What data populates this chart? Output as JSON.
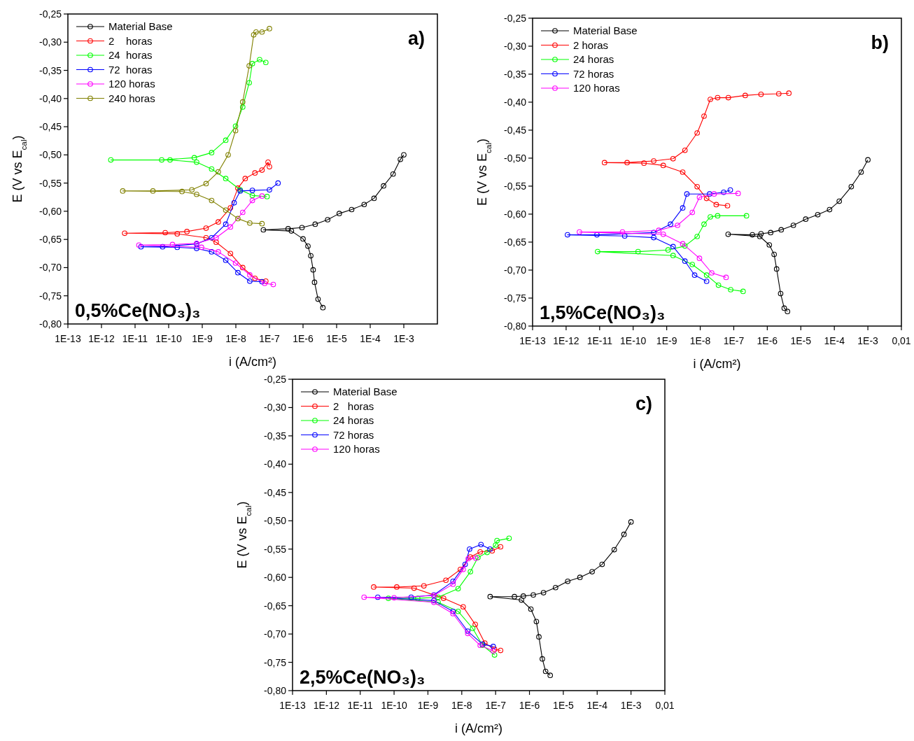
{
  "chart_data": [
    {
      "type": "line",
      "xlabel": "i (A/cm²)",
      "ylabel": "E (V vs E$_{cal}$)",
      "log": "x",
      "legend": "top left",
      "marker": "circle",
      "line_style": "solid",
      "xlim": [
        1e-13,
        0.01
      ],
      "ylim": [
        -0.8,
        -0.25
      ],
      "xticks": [
        {
          "value": 1e-13,
          "label": "1E-13"
        },
        {
          "value": 1e-12,
          "label": "1E-12"
        },
        {
          "value": 1e-11,
          "label": "1E-11"
        },
        {
          "value": 1e-10,
          "label": "1E-10"
        },
        {
          "value": 1e-09,
          "label": "1E-9"
        },
        {
          "value": 1e-08,
          "label": "1E-8"
        },
        {
          "value": 1e-07,
          "label": "1E-7"
        },
        {
          "value": 1e-06,
          "label": "1E-6"
        },
        {
          "value": 1e-05,
          "label": "1E-5"
        },
        {
          "value": 0.0001,
          "label": "1E-4"
        },
        {
          "value": 0.001,
          "label": "1E-3"
        }
      ],
      "yticks": [
        {
          "value": -0.25,
          "label": "-0,25"
        },
        {
          "value": -0.3,
          "label": "-0,30"
        },
        {
          "value": -0.35,
          "label": "-0,35"
        },
        {
          "value": -0.4,
          "label": "-0,40"
        },
        {
          "value": -0.45,
          "label": "-0,45"
        },
        {
          "value": -0.5,
          "label": "-0,50"
        },
        {
          "value": -0.55,
          "label": "-0,55"
        },
        {
          "value": -0.6,
          "label": "-0,60"
        },
        {
          "value": -0.65,
          "label": "-0,65"
        },
        {
          "value": -0.7,
          "label": "-0,70"
        },
        {
          "value": -0.75,
          "label": "-0,75"
        },
        {
          "value": -0.8,
          "label": "-0,80"
        }
      ],
      "annotations": [
        "a)",
        "0,5%Ce(NO₃)₃"
      ],
      "series": [
        {
          "name": "Material Base",
          "color": "#000000",
          "x": [
            3.9e-06,
            2.8e-06,
            2.2e-06,
            2e-06,
            1.7e-06,
            1.4e-06,
            1e-06,
            4.5e-07,
            6.6e-08,
            3.6e-07,
            9.3e-07,
            2.3e-06,
            5.4e-06,
            1.2e-05,
            2.8e-05,
            6.6e-05,
            0.00013,
            0.00025,
            0.00048,
            0.00079,
            0.001
          ],
          "values": [
            -0.771,
            -0.756,
            -0.726,
            -0.704,
            -0.679,
            -0.662,
            -0.649,
            -0.635,
            -0.633,
            -0.631,
            -0.629,
            -0.623,
            -0.615,
            -0.604,
            -0.597,
            -0.588,
            -0.577,
            -0.555,
            -0.534,
            -0.508,
            -0.5
          ]
        },
        {
          "name": "2    horas",
          "color": "#ff0000",
          "x": [
            7.8e-08,
            3.7e-08,
            1.6e-08,
            6.9e-09,
            2.6e-09,
            1.3e-09,
            1.8e-10,
            4.9e-12,
            7.9e-11,
            3.5e-10,
            1.3e-09,
            3e-09,
            6.9e-09,
            1.15e-08,
            1.9e-08,
            3.7e-08,
            6e-08,
            9.1e-08,
            1e-07
          ],
          "values": [
            -0.724,
            -0.719,
            -0.7,
            -0.675,
            -0.655,
            -0.647,
            -0.64,
            -0.639,
            -0.638,
            -0.636,
            -0.63,
            -0.619,
            -0.594,
            -0.559,
            -0.542,
            -0.532,
            -0.527,
            -0.513,
            -0.521
          ]
        },
        {
          "name": "24  horas",
          "color": "#00ff00",
          "x": [
            8.5e-08,
            3.1e-08,
            1.35e-08,
            5e-09,
            1.9e-09,
            6.8e-10,
            1.1e-10,
            1.9e-12,
            6.2e-11,
            5.8e-10,
            1.9e-09,
            5e-09,
            9.8e-09,
            1.6e-08,
            2.5e-08,
            3.1e-08,
            5.1e-08,
            7.8e-08
          ],
          "values": [
            -0.574,
            -0.572,
            -0.562,
            -0.542,
            -0.525,
            -0.513,
            -0.509,
            -0.509,
            -0.509,
            -0.505,
            -0.496,
            -0.474,
            -0.449,
            -0.415,
            -0.372,
            -0.338,
            -0.331,
            -0.336
          ]
        },
        {
          "name": "72  horas",
          "color": "#0000ff",
          "x": [
            6e-08,
            2.6e-08,
            1.15e-08,
            5e-09,
            1.9e-09,
            6.8e-10,
            1.8e-10,
            1.5e-11,
            6.6e-11,
            6.8e-10,
            1.9e-09,
            5e-09,
            8.9e-09,
            1.35e-08,
            3.1e-08,
            1e-07,
            1.8e-07
          ],
          "values": [
            -0.725,
            -0.724,
            -0.709,
            -0.687,
            -0.672,
            -0.666,
            -0.664,
            -0.663,
            -0.663,
            -0.658,
            -0.647,
            -0.623,
            -0.585,
            -0.564,
            -0.563,
            -0.562,
            -0.55
          ]
        },
        {
          "name": "120 horas",
          "color": "#ff00ff",
          "x": [
            1.3e-07,
            7.2e-08,
            2.6e-08,
            9.8e-09,
            3e-09,
            9.5e-10,
            1.3e-11,
            1.3e-10,
            6.8e-10,
            2.6e-09,
            6.9e-09,
            1.6e-08,
            3.1e-08,
            6e-08
          ],
          "values": [
            -0.73,
            -0.728,
            -0.713,
            -0.692,
            -0.672,
            -0.664,
            -0.66,
            -0.659,
            -0.657,
            -0.647,
            -0.628,
            -0.602,
            -0.581,
            -0.573
          ]
        },
        {
          "name": "240 horas",
          "color": "#808000",
          "x": [
            6e-08,
            2.6e-08,
            1.15e-08,
            5e-09,
            1.9e-09,
            6.8e-10,
            2.5e-10,
            4.3e-12,
            3.4e-11,
            4.9e-10,
            1.3e-09,
            3e-09,
            5.9e-09,
            9.8e-09,
            1.6e-08,
            2.5e-08,
            3.4e-08,
            4e-08,
            6e-08,
            1e-07
          ],
          "values": [
            -0.622,
            -0.621,
            -0.613,
            -0.598,
            -0.581,
            -0.57,
            -0.565,
            -0.564,
            -0.564,
            -0.562,
            -0.551,
            -0.53,
            -0.5,
            -0.457,
            -0.406,
            -0.342,
            -0.287,
            -0.282,
            -0.282,
            -0.276
          ]
        }
      ]
    },
    {
      "type": "line",
      "xlabel": "i (A/cm²)",
      "ylabel": "E (V vs E$_{cal}$)",
      "log": "x",
      "legend": "top left",
      "marker": "circle",
      "line_style": "solid",
      "xlim": [
        1e-13,
        0.01
      ],
      "ylim": [
        -0.8,
        -0.25
      ],
      "xticks": [
        {
          "value": 1e-13,
          "label": "1E-13"
        },
        {
          "value": 1e-12,
          "label": "1E-12"
        },
        {
          "value": 1e-11,
          "label": "1E-11"
        },
        {
          "value": 1e-10,
          "label": "1E-10"
        },
        {
          "value": 1e-09,
          "label": "1E-9"
        },
        {
          "value": 1e-08,
          "label": "1E-8"
        },
        {
          "value": 1e-07,
          "label": "1E-7"
        },
        {
          "value": 1e-06,
          "label": "1E-6"
        },
        {
          "value": 1e-05,
          "label": "1E-5"
        },
        {
          "value": 0.0001,
          "label": "1E-4"
        },
        {
          "value": 0.001,
          "label": "1E-3"
        },
        {
          "value": 0.01,
          "label": "0,01"
        }
      ],
      "yticks": [
        {
          "value": -0.25,
          "label": "-0,25"
        },
        {
          "value": -0.3,
          "label": "-0,30"
        },
        {
          "value": -0.35,
          "label": "-0,35"
        },
        {
          "value": -0.4,
          "label": "-0,40"
        },
        {
          "value": -0.45,
          "label": "-0,45"
        },
        {
          "value": -0.5,
          "label": "-0,50"
        },
        {
          "value": -0.55,
          "label": "-0,55"
        },
        {
          "value": -0.6,
          "label": "-0,60"
        },
        {
          "value": -0.65,
          "label": "-0,65"
        },
        {
          "value": -0.7,
          "label": "-0,70"
        },
        {
          "value": -0.75,
          "label": "-0,75"
        },
        {
          "value": -0.8,
          "label": "-0,80"
        }
      ],
      "annotations": [
        "b)",
        "1,5%Ce(NO₃)₃"
      ],
      "series": [
        {
          "name": "Material Base",
          "color": "#000000",
          "x": [
            4e-06,
            3.2e-06,
            2.5e-06,
            1.9e-06,
            1.6e-06,
            1.15e-06,
            6e-07,
            6.8e-08,
            3.6e-07,
            6.5e-07,
            1.26e-06,
            2.6e-06,
            6e-06,
            1.4e-05,
            3.2e-05,
            7.2e-05,
            0.00014,
            0.00032,
            0.00063,
            0.001
          ],
          "values": [
            -0.774,
            -0.768,
            -0.742,
            -0.698,
            -0.672,
            -0.655,
            -0.64,
            -0.636,
            -0.637,
            -0.635,
            -0.633,
            -0.628,
            -0.62,
            -0.609,
            -0.601,
            -0.592,
            -0.577,
            -0.551,
            -0.525,
            -0.503
          ]
        },
        {
          "name": "2 horas",
          "color": "#ff0000",
          "x": [
            6.5e-08,
            3e-08,
            1.55e-08,
            8.1e-09,
            3e-09,
            7.9e-10,
            2.1e-10,
            1.4e-11,
            6.6e-11,
            4.1e-10,
            1.55e-09,
            3.5e-09,
            8.1e-09,
            1.3e-08,
            2e-08,
            3.3e-08,
            6.9e-08,
            2.2e-07,
            6.5e-07,
            2.2e-06,
            4.4e-06
          ],
          "values": [
            -0.585,
            -0.583,
            -0.572,
            -0.551,
            -0.525,
            -0.513,
            -0.509,
            -0.508,
            -0.508,
            -0.505,
            -0.501,
            -0.486,
            -0.455,
            -0.425,
            -0.395,
            -0.392,
            -0.392,
            -0.388,
            -0.386,
            -0.385,
            -0.384
          ]
        },
        {
          "name": "24 horas",
          "color": "#00ff00",
          "x": [
            1.9e-07,
            8.1e-08,
            3.5e-08,
            1.55e-08,
            5.8e-09,
            1.55e-09,
            8.7e-12,
            1.4e-10,
            1.1e-09,
            3.5e-09,
            8.1e-09,
            1.3e-08,
            2e-08,
            3.3e-08,
            2.4e-07
          ],
          "values": [
            -0.738,
            -0.735,
            -0.727,
            -0.709,
            -0.69,
            -0.674,
            -0.667,
            -0.667,
            -0.664,
            -0.657,
            -0.64,
            -0.618,
            -0.605,
            -0.603,
            -0.603
          ]
        },
        {
          "name": "72 horas",
          "color": "#0000ff",
          "x": [
            1.55e-08,
            6.8e-09,
            3.5e-09,
            1.55e-09,
            4.1e-10,
            5.6e-11,
            1.1e-12,
            8.3e-12,
            4.1e-10,
            1.3e-09,
            3e-09,
            4e-09,
            1.9e-08,
            5e-08,
            7.9e-08
          ],
          "values": [
            -0.72,
            -0.709,
            -0.684,
            -0.658,
            -0.642,
            -0.639,
            -0.637,
            -0.637,
            -0.633,
            -0.618,
            -0.589,
            -0.564,
            -0.564,
            -0.561,
            -0.557
          ]
        },
        {
          "name": "120 horas",
          "color": "#ff00ff",
          "x": [
            5.9e-08,
            2.2e-08,
            9.5e-09,
            3e-09,
            7.9e-10,
            2.5e-12,
            4.8e-11,
            5.8e-10,
            2.1e-09,
            5.8e-09,
            9.5e-09,
            2.6e-08,
            1.35e-07
          ],
          "values": [
            -0.713,
            -0.705,
            -0.679,
            -0.653,
            -0.636,
            -0.632,
            -0.632,
            -0.629,
            -0.62,
            -0.597,
            -0.57,
            -0.564,
            -0.563
          ]
        }
      ]
    },
    {
      "type": "line",
      "xlabel": "i (A/cm²)",
      "ylabel": "E (V vs E$_{cal}$)",
      "log": "x",
      "legend": "top left",
      "marker": "circle",
      "line_style": "solid",
      "xlim": [
        1e-13,
        0.01
      ],
      "ylim": [
        -0.8,
        -0.25
      ],
      "xticks": [
        {
          "value": 1e-13,
          "label": "1E-13"
        },
        {
          "value": 1e-12,
          "label": "1E-12"
        },
        {
          "value": 1e-11,
          "label": "1E-11"
        },
        {
          "value": 1e-10,
          "label": "1E-10"
        },
        {
          "value": 1e-09,
          "label": "1E-9"
        },
        {
          "value": 1e-08,
          "label": "1E-8"
        },
        {
          "value": 1e-07,
          "label": "1E-7"
        },
        {
          "value": 1e-06,
          "label": "1E-6"
        },
        {
          "value": 1e-05,
          "label": "1E-5"
        },
        {
          "value": 0.0001,
          "label": "1E-4"
        },
        {
          "value": 0.001,
          "label": "1E-3"
        },
        {
          "value": 0.01,
          "label": "0,01"
        }
      ],
      "yticks": [
        {
          "value": -0.25,
          "label": "-0,25"
        },
        {
          "value": -0.3,
          "label": "-0,30"
        },
        {
          "value": -0.35,
          "label": "-0,35"
        },
        {
          "value": -0.4,
          "label": "-0,40"
        },
        {
          "value": -0.45,
          "label": "-0,45"
        },
        {
          "value": -0.5,
          "label": "-0,50"
        },
        {
          "value": -0.55,
          "label": "-0,55"
        },
        {
          "value": -0.6,
          "label": "-0,60"
        },
        {
          "value": -0.65,
          "label": "-0,65"
        },
        {
          "value": -0.7,
          "label": "-0,70"
        },
        {
          "value": -0.75,
          "label": "-0,75"
        },
        {
          "value": -0.8,
          "label": "-0,80"
        }
      ],
      "annotations": [
        "c)",
        "2,5%Ce(NO₃)₃"
      ],
      "series": [
        {
          "name": "Material Base",
          "color": "#000000",
          "x": [
            4.1e-06,
            3e-06,
            2.4e-06,
            1.9e-06,
            1.6e-06,
            1.1e-06,
            5.8e-07,
            6.9e-08,
            3.6e-07,
            6.6e-07,
            1.3e-06,
            2.6e-06,
            5.9e-06,
            1.35e-05,
            3.1e-05,
            7.1e-05,
            0.00014,
            0.00032,
            0.00062,
            0.001
          ],
          "values": [
            -0.773,
            -0.766,
            -0.744,
            -0.705,
            -0.678,
            -0.656,
            -0.64,
            -0.634,
            -0.634,
            -0.633,
            -0.631,
            -0.627,
            -0.618,
            -0.607,
            -0.6,
            -0.59,
            -0.577,
            -0.551,
            -0.524,
            -0.502
          ]
        },
        {
          "name": "2   horas",
          "color": "#ff0000",
          "x": [
            1.4e-07,
            9.3e-08,
            4.8e-08,
            2.5e-08,
            1.1e-08,
            2.9e-09,
            3.9e-10,
            2.5e-11,
            1.2e-10,
            7.6e-10,
            3.4e-09,
            9.1e-09,
            1.8e-08,
            3.5e-08,
            7.9e-08,
            1.4e-07
          ],
          "values": [
            -0.729,
            -0.727,
            -0.716,
            -0.683,
            -0.652,
            -0.637,
            -0.619,
            -0.617,
            -0.617,
            -0.615,
            -0.605,
            -0.586,
            -0.564,
            -0.555,
            -0.553,
            -0.546
          ]
        },
        {
          "name": "24 horas",
          "color": "#00ff00",
          "x": [
            9.3e-08,
            4.1e-08,
            2.1e-08,
            7.8e-09,
            2e-09,
            6.8e-11,
            5e-10,
            2e-09,
            7.8e-09,
            1.8e-08,
            3e-08,
            5.6e-08,
            1e-07,
            1.1e-07,
            2.5e-07
          ],
          "values": [
            -0.737,
            -0.72,
            -0.69,
            -0.66,
            -0.644,
            -0.637,
            -0.637,
            -0.635,
            -0.62,
            -0.59,
            -0.565,
            -0.556,
            -0.543,
            -0.535,
            -0.531
          ]
        },
        {
          "name": "72 horas",
          "color": "#0000ff",
          "x": [
            8.5e-08,
            4.1e-08,
            1.5e-08,
            5.5e-09,
            1.5e-09,
            3.3e-11,
            3.2e-10,
            1.5e-09,
            5.5e-09,
            1.26e-08,
            1.7e-08,
            3.7e-08,
            6.8e-08
          ],
          "values": [
            -0.722,
            -0.718,
            -0.695,
            -0.66,
            -0.641,
            -0.635,
            -0.635,
            -0.631,
            -0.607,
            -0.577,
            -0.55,
            -0.542,
            -0.55
          ]
        },
        {
          "name": "120 horas",
          "color": "#ff00ff",
          "x": [
            8.5e-08,
            3.5e-08,
            1.5e-08,
            5.5e-09,
            1.5e-09,
            1.3e-11,
            1e-10,
            1.5e-09,
            5.5e-09,
            1.1e-08,
            1.55e-08,
            2.6e-08
          ],
          "values": [
            -0.73,
            -0.72,
            -0.699,
            -0.664,
            -0.644,
            -0.635,
            -0.636,
            -0.632,
            -0.612,
            -0.586,
            -0.567,
            -0.566
          ]
        }
      ]
    }
  ]
}
